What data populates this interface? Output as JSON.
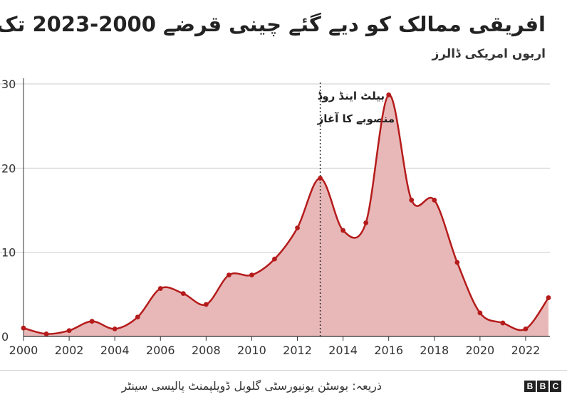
{
  "header": {
    "title": "افریقی ممالک کو دیے گئے چینی قرضے 2000-2023 تک",
    "subtitle": "اربوں امریکی ڈالرز"
  },
  "annotation": {
    "line1": "بیلٹ اینڈ روڈ",
    "line2": "منصوبے کا آغاز",
    "year": 2013
  },
  "footer": {
    "source": "ذریعہ: بوسٹن یونیورسٹی گلوبل ڈویلپمنٹ پالیسی سینٹر",
    "logo_letters": [
      "B",
      "B",
      "C"
    ]
  },
  "colors": {
    "line": "#b51b1b",
    "fill": "#e8b8b8",
    "grid": "#cccccc",
    "axis": "#333333"
  },
  "chart_data": {
    "type": "area",
    "x": [
      2000,
      2001,
      2002,
      2003,
      2004,
      2005,
      2006,
      2007,
      2008,
      2009,
      2010,
      2011,
      2012,
      2013,
      2014,
      2015,
      2016,
      2017,
      2018,
      2019,
      2020,
      2021,
      2022,
      2023
    ],
    "values": [
      1.0,
      0.3,
      0.7,
      1.8,
      0.9,
      2.3,
      5.7,
      5.1,
      3.8,
      7.3,
      7.3,
      9.2,
      12.9,
      18.8,
      12.6,
      13.5,
      28.7,
      16.2,
      16.2,
      8.8,
      2.8,
      1.6,
      0.9,
      4.6
    ],
    "xticks": [
      "2000",
      "2002",
      "2004",
      "2006",
      "2008",
      "2010",
      "2012",
      "2014",
      "2016",
      "2018",
      "2020",
      "2022"
    ],
    "yticks": [
      "0",
      "10",
      "20",
      "30"
    ],
    "xlim": [
      2000,
      2023
    ],
    "ylim": [
      0,
      30
    ],
    "grid": true,
    "xlabel": "",
    "ylabel": ""
  }
}
